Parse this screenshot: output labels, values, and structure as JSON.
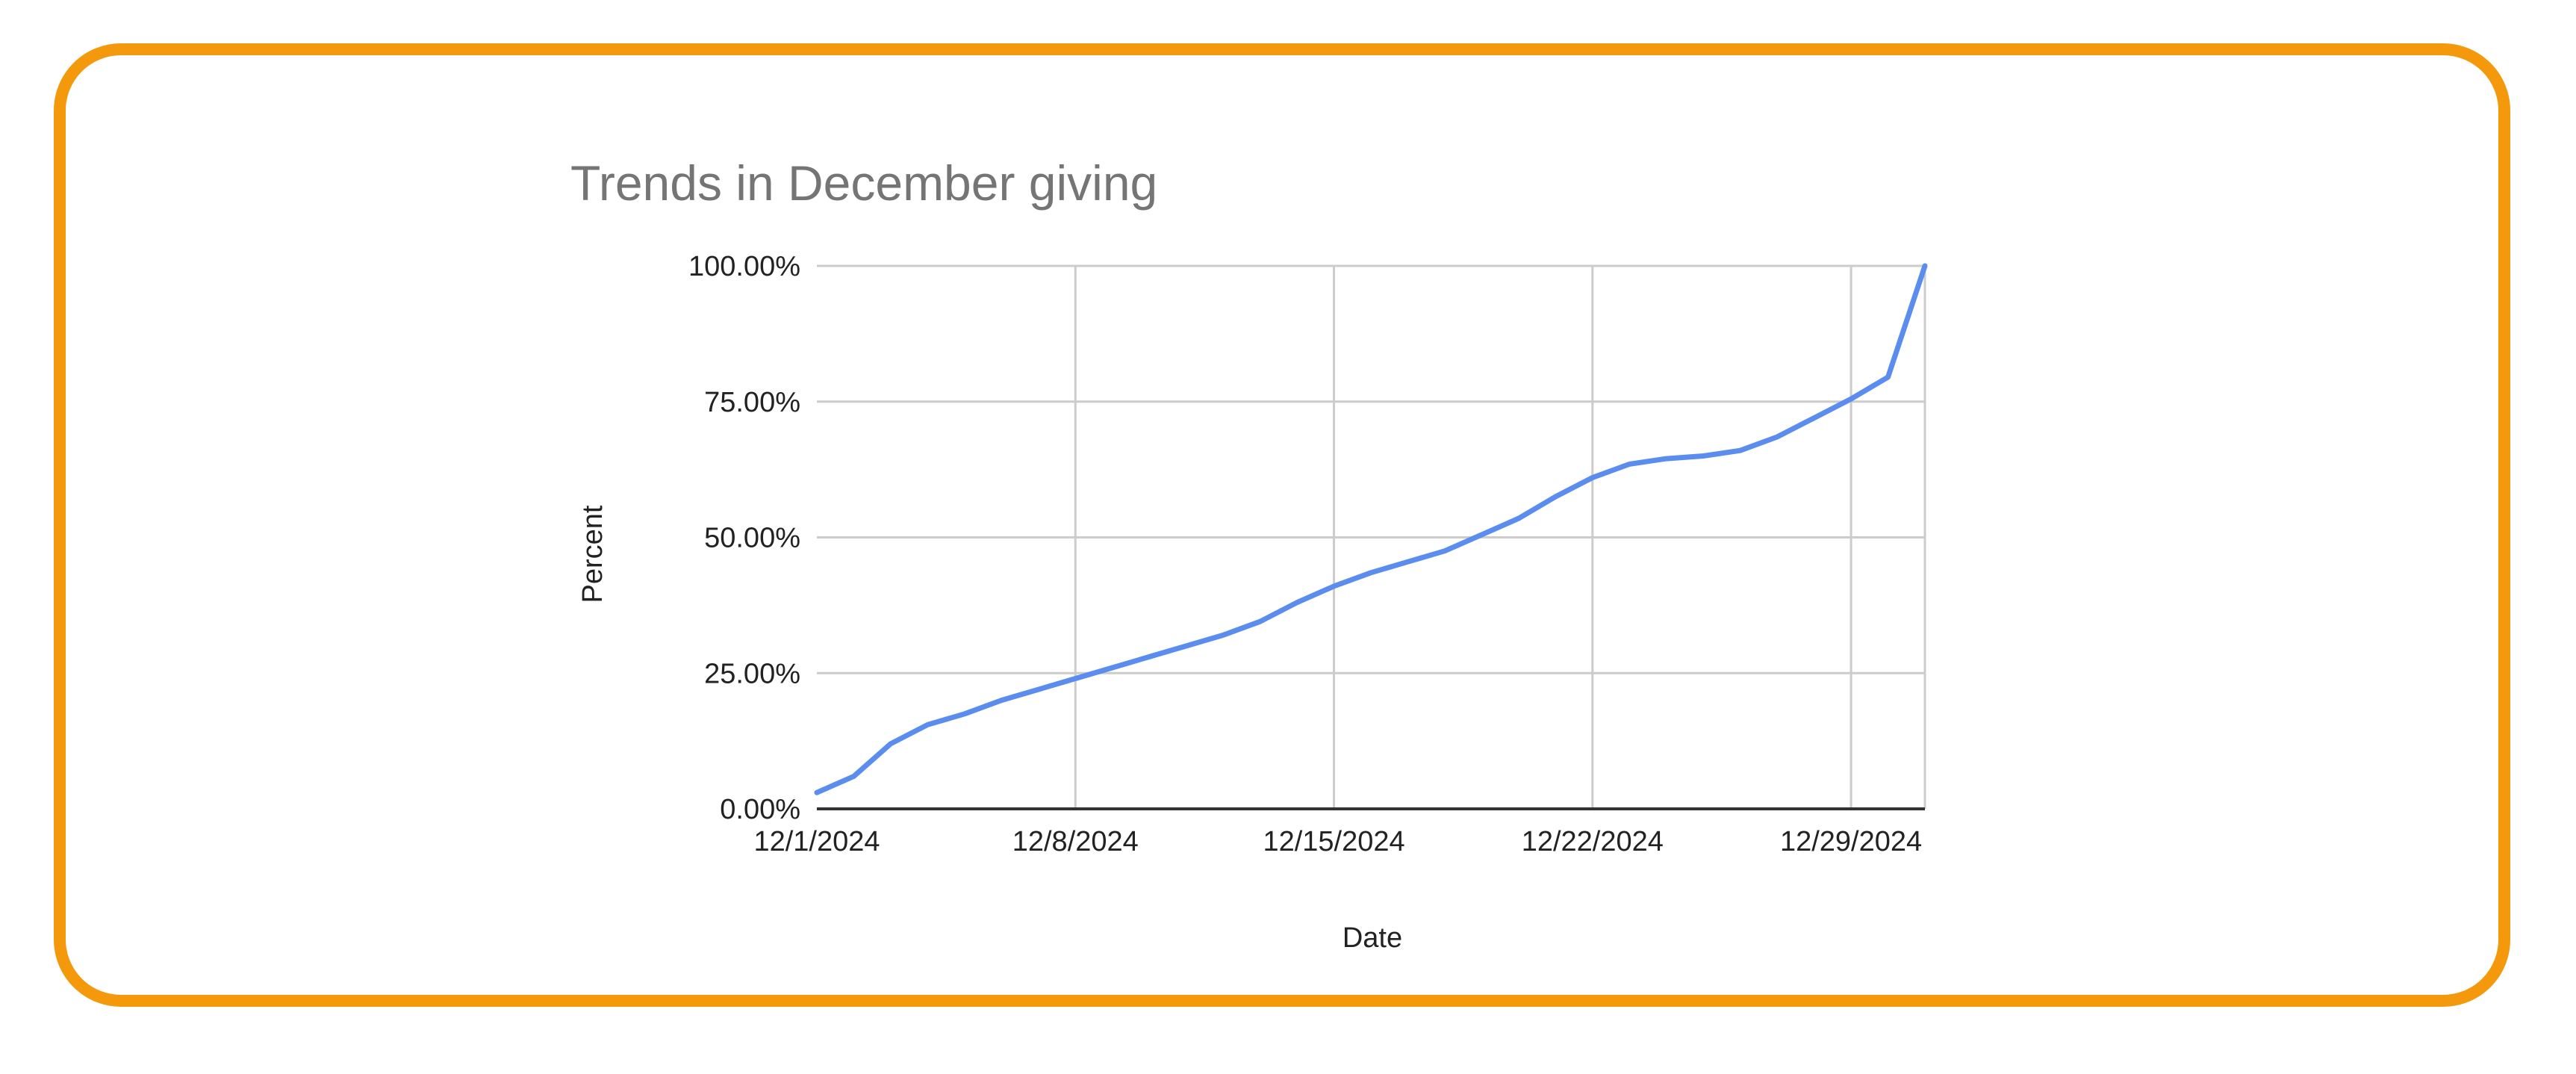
{
  "frame": {
    "border_color": "#f4990c"
  },
  "chart_data": {
    "type": "line",
    "title": "Trends in December giving",
    "xlabel": "Date",
    "ylabel": "Percent",
    "x_tick_labels": [
      "12/1/2024",
      "12/8/2024",
      "12/15/2024",
      "12/22/2024",
      "12/29/2024"
    ],
    "y_tick_labels": [
      "0.00%",
      "25.00%",
      "50.00%",
      "75.00%",
      "100.00%"
    ],
    "xlim": [
      "2024-12-01",
      "2024-12-31"
    ],
    "ylim": [
      0,
      100
    ],
    "grid": true,
    "legend": "none",
    "series": [
      {
        "color": "#5b8def",
        "x": [
          "2024-12-01",
          "2024-12-02",
          "2024-12-03",
          "2024-12-04",
          "2024-12-05",
          "2024-12-06",
          "2024-12-07",
          "2024-12-08",
          "2024-12-09",
          "2024-12-10",
          "2024-12-11",
          "2024-12-12",
          "2024-12-13",
          "2024-12-14",
          "2024-12-15",
          "2024-12-16",
          "2024-12-17",
          "2024-12-18",
          "2024-12-19",
          "2024-12-20",
          "2024-12-21",
          "2024-12-22",
          "2024-12-23",
          "2024-12-24",
          "2024-12-25",
          "2024-12-26",
          "2024-12-27",
          "2024-12-28",
          "2024-12-29",
          "2024-12-30",
          "2024-12-31"
        ],
        "values": [
          3,
          6,
          12,
          15.5,
          17.5,
          20,
          22,
          24,
          26,
          28,
          30,
          32,
          34.5,
          38,
          41,
          43.5,
          45.5,
          47.5,
          50.5,
          53.5,
          57.5,
          61,
          63.5,
          64.5,
          65,
          66,
          68.5,
          72,
          75.5,
          79.5,
          100
        ]
      }
    ]
  }
}
